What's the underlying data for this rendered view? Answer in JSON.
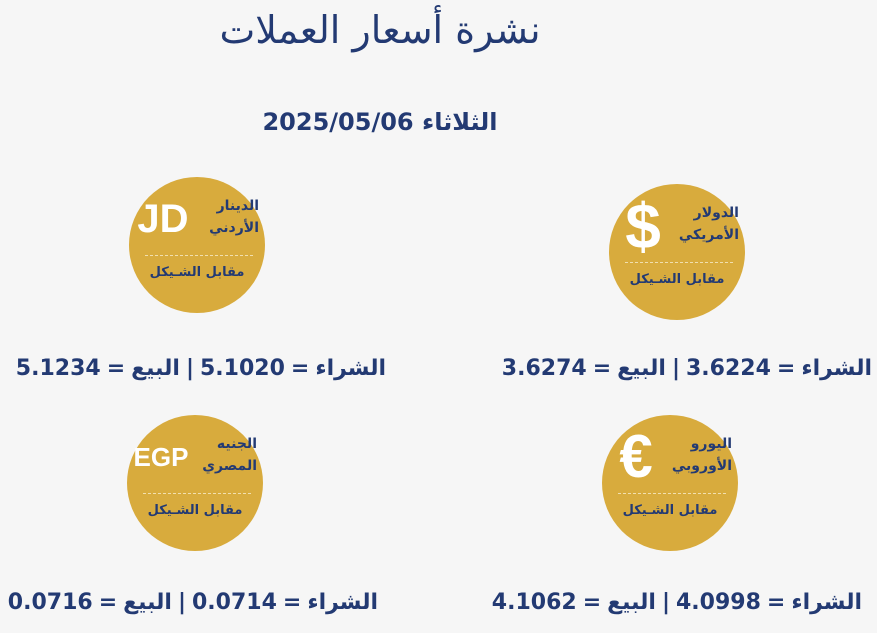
{
  "title": "نشرة أسعار العملات",
  "date": "الثلاثاء 2025/05/06",
  "against": "مقابل الشـيكل",
  "colors": {
    "gold": "#d8ab3d",
    "navy": "#233a73"
  },
  "buy_label": "الشراء",
  "sell_label": "البيع",
  "currencies": [
    {
      "symbol": "$",
      "name1": "الدولار",
      "name2": "الأمريكي",
      "buy": "3.6224",
      "sell": "3.6274"
    },
    {
      "symbol": "JD",
      "name1": "الدينار",
      "name2": "الأردني",
      "buy": "5.1020",
      "sell": "5.1234"
    },
    {
      "symbol": "€",
      "name1": "اليورو",
      "name2": "الأوروبي",
      "buy": "4.0998",
      "sell": "4.1062"
    },
    {
      "symbol": "EGP",
      "name1": "الجنيه",
      "name2": "المصري",
      "buy": "0.0714",
      "sell": "0.0716"
    }
  ]
}
